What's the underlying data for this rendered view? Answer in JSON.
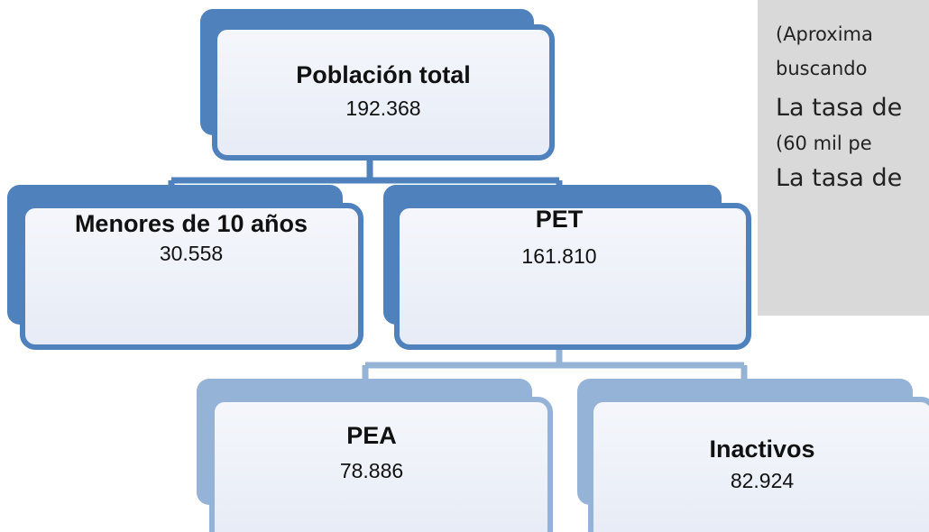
{
  "nodes": [
    {
      "label": "Población total",
      "value": "192.368"
    },
    {
      "label": "Menores de 10 años",
      "value": "30.558"
    },
    {
      "label": "PET",
      "value": "161.810"
    },
    {
      "label": "PEA",
      "value": "78.886"
    },
    {
      "label": "Inactivos",
      "value": "82.924"
    }
  ],
  "side_panel": {
    "lines": [
      "(Aproxima",
      "buscando",
      "La tasa de",
      "(60 mil pe",
      "La tasa de"
    ]
  }
}
